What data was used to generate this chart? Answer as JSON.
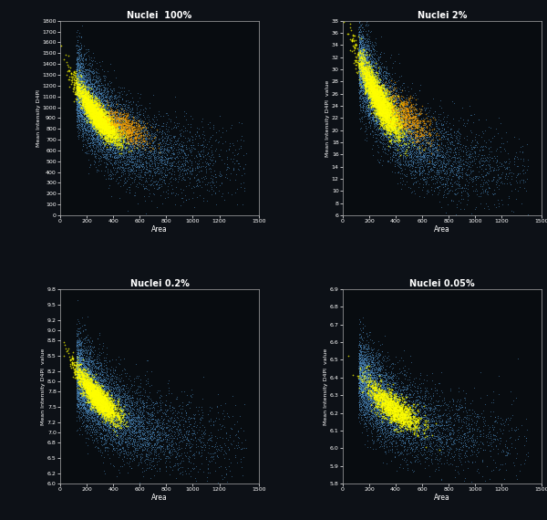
{
  "titles": [
    "Nuclei  100%",
    "Nuclei 2%",
    "Nuclei 0.2%",
    "Nuclei 0.05%"
  ],
  "xlabel": "Area",
  "background_color": "#0d1117",
  "plot_bg": "#080c10",
  "title_color": "white",
  "axis_color": "white",
  "tick_color": "white",
  "panels": [
    {
      "ylim": [
        0.0,
        1800.0
      ],
      "yticks": [
        0.0,
        100.0,
        200.0,
        300.0,
        400.0,
        500.0,
        600.0,
        700.0,
        800.0,
        900.0,
        1000.0,
        1100.0,
        1200.0,
        1300.0,
        1400.0,
        1500.0,
        1600.0,
        1700.0,
        1800.0
      ],
      "xlim": [
        0.0,
        1500.0
      ],
      "xticks": [
        0.0,
        200.0,
        400.0,
        600.0,
        800.0,
        1000.0,
        1200.0,
        1500.0
      ],
      "ylabel": "Mean Intensity D4PI",
      "y_a": 500,
      "y_b": 800,
      "y_c": 0.003,
      "y_floor": 450,
      "dense_x_center": 280,
      "dense_x_std": 80,
      "dense_y_center": 660,
      "dense_y_std": 60,
      "dense_n": 3000,
      "g2_x_center": 500,
      "g2_x_std": 80,
      "g2_y_center": 800,
      "g2_y_std": 60,
      "g2_n": 600,
      "bg_n": 8000,
      "bg_x_max": 1400,
      "bg_x_min": 120,
      "arc_color_cmap": "YlOrRd",
      "g2_color_cmap": "YlOrRd",
      "blue_color": "#5090c8"
    },
    {
      "ylim": [
        6.0,
        38.0
      ],
      "yticks": [
        6.0,
        8.0,
        10.0,
        12.0,
        14.0,
        16.0,
        18.0,
        20.0,
        22.0,
        24.0,
        26.0,
        28.0,
        30.0,
        32.0,
        34.0,
        36.0,
        38.0
      ],
      "xlim": [
        0.0,
        1500.0
      ],
      "xticks": [
        0.0,
        200.0,
        400.0,
        600.0,
        800.0,
        1000.0,
        1200.0,
        1500.0
      ],
      "ylabel": "Mean Intensity D4PI  value",
      "y_a": 14.0,
      "y_b": 20.0,
      "y_c": 0.003,
      "y_floor": 13.0,
      "dense_x_center": 280,
      "dense_x_std": 80,
      "dense_y_center": 17.5,
      "dense_y_std": 1.5,
      "dense_n": 3000,
      "g2_x_center": 500,
      "g2_x_std": 80,
      "g2_y_center": 21.0,
      "g2_y_std": 1.5,
      "g2_n": 600,
      "bg_n": 8000,
      "bg_x_max": 1400,
      "bg_x_min": 120,
      "arc_color_cmap": "YlOrRd",
      "g2_color_cmap": "YlOrRd",
      "blue_color": "#5090c8"
    },
    {
      "ylim": [
        6.0,
        9.8
      ],
      "yticks": [
        6.0,
        6.2,
        6.5,
        6.8,
        7.0,
        7.2,
        7.5,
        7.8,
        8.0,
        8.2,
        8.5,
        8.8,
        9.0,
        9.2,
        9.5,
        9.8
      ],
      "xlim": [
        0.0,
        1500.0
      ],
      "xticks": [
        0.0,
        200.0,
        400.0,
        600.0,
        800.0,
        1000.0,
        1200.0,
        1500.0
      ],
      "ylabel": "Mean Intensity D4PI  value",
      "y_a": 6.8,
      "y_b": 1.5,
      "y_c": 0.003,
      "y_floor": 6.8,
      "dense_x_center": 280,
      "dense_x_std": 80,
      "dense_y_center": 7.2,
      "dense_y_std": 0.12,
      "dense_n": 2500,
      "g2_x_center": 0,
      "g2_x_std": 0,
      "g2_y_center": 0,
      "g2_y_std": 0,
      "g2_n": 0,
      "bg_n": 7000,
      "bg_x_max": 1400,
      "bg_x_min": 120,
      "arc_color_cmap": "YlOrRd",
      "g2_color_cmap": "YlOrRd",
      "blue_color": "#5090c8"
    },
    {
      "ylim": [
        5.8,
        6.9
      ],
      "yticks": [
        5.8,
        5.9,
        6.0,
        6.1,
        6.2,
        6.3,
        6.4,
        6.5,
        6.6,
        6.7,
        6.8,
        6.9
      ],
      "xlim": [
        0.0,
        1500.0
      ],
      "xticks": [
        0.0,
        200.0,
        400.0,
        600.0,
        800.0,
        1000.0,
        1200.0,
        1500.0
      ],
      "ylabel": "Mean Intensity D4PI  value",
      "y_a": 6.05,
      "y_b": 0.4,
      "y_c": 0.003,
      "y_floor": 6.05,
      "dense_x_center": 380,
      "dense_x_std": 100,
      "dense_y_center": 6.1,
      "dense_y_std": 0.04,
      "dense_n": 1500,
      "g2_x_center": 0,
      "g2_x_std": 0,
      "g2_y_center": 0,
      "g2_y_std": 0,
      "g2_n": 0,
      "bg_n": 6000,
      "bg_x_max": 1400,
      "bg_x_min": 120,
      "arc_color_cmap": "RdPu",
      "g2_color_cmap": "RdPu",
      "blue_color": "#5090c8"
    }
  ]
}
